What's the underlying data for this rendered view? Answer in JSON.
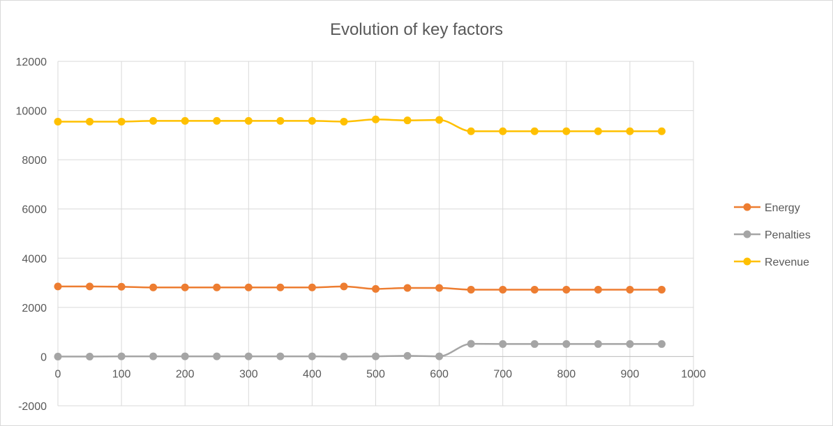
{
  "chart_data": {
    "type": "scatter",
    "title": "Evolution of key factors",
    "xlabel": "",
    "ylabel": "",
    "xlim": [
      0,
      1000
    ],
    "ylim": [
      -2000,
      12000
    ],
    "x_ticks": [
      0,
      100,
      200,
      300,
      400,
      500,
      600,
      700,
      800,
      900,
      1000
    ],
    "y_ticks": [
      -2000,
      0,
      2000,
      4000,
      6000,
      8000,
      10000,
      12000
    ],
    "grid": true,
    "legend_position": "right",
    "smooth_lines": true,
    "x": [
      0,
      50,
      100,
      150,
      200,
      250,
      300,
      350,
      400,
      450,
      500,
      550,
      600,
      650,
      700,
      750,
      800,
      850,
      900,
      950
    ],
    "series": [
      {
        "name": "Energy",
        "color": "#ED7D31",
        "values": [
          2850,
          2850,
          2840,
          2810,
          2810,
          2810,
          2810,
          2810,
          2810,
          2850,
          2750,
          2790,
          2790,
          2720,
          2720,
          2720,
          2720,
          2720,
          2720,
          2720
        ]
      },
      {
        "name": "Penalties",
        "color": "#A5A5A5",
        "values": [
          0,
          0,
          10,
          10,
          10,
          10,
          10,
          10,
          10,
          0,
          10,
          30,
          10,
          520,
          510,
          510,
          510,
          510,
          510,
          510
        ]
      },
      {
        "name": "Revenue",
        "color": "#FFC000",
        "values": [
          9550,
          9550,
          9550,
          9580,
          9580,
          9580,
          9580,
          9580,
          9580,
          9550,
          9640,
          9600,
          9620,
          9160,
          9160,
          9160,
          9160,
          9160,
          9160,
          9160
        ]
      }
    ]
  }
}
